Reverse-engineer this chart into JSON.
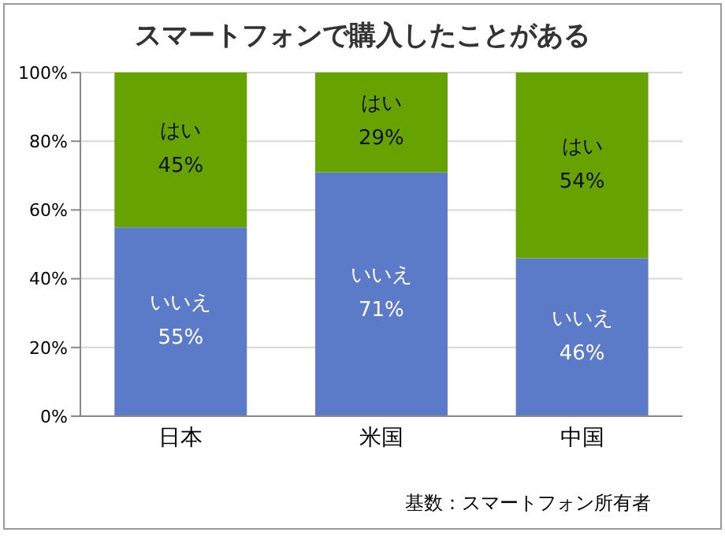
{
  "chart_data": {
    "type": "bar",
    "title": "スマートフォンで購入したことがある",
    "categories": [
      "日本",
      "米国",
      "中国"
    ],
    "stacked": true,
    "series": [
      {
        "name": "いいえ",
        "color": "#5b7bc8",
        "values": [
          55,
          71,
          46
        ],
        "value_labels": [
          "55%",
          "71%",
          "46%"
        ]
      },
      {
        "name": "はい",
        "color": "#67a300",
        "values": [
          45,
          29,
          54
        ],
        "value_labels": [
          "45%",
          "29%",
          "54%"
        ]
      }
    ],
    "ylim": [
      0,
      100
    ],
    "yticks": [
      {
        "value": 0,
        "label": "0%"
      },
      {
        "value": 20,
        "label": "20%"
      },
      {
        "value": 40,
        "label": "40%"
      },
      {
        "value": 60,
        "label": "60%"
      },
      {
        "value": 80,
        "label": "80%"
      },
      {
        "value": 100,
        "label": "100%"
      }
    ],
    "grid": "y",
    "legend": false,
    "annotations": [
      "基数：スマートフォン所有者"
    ]
  }
}
